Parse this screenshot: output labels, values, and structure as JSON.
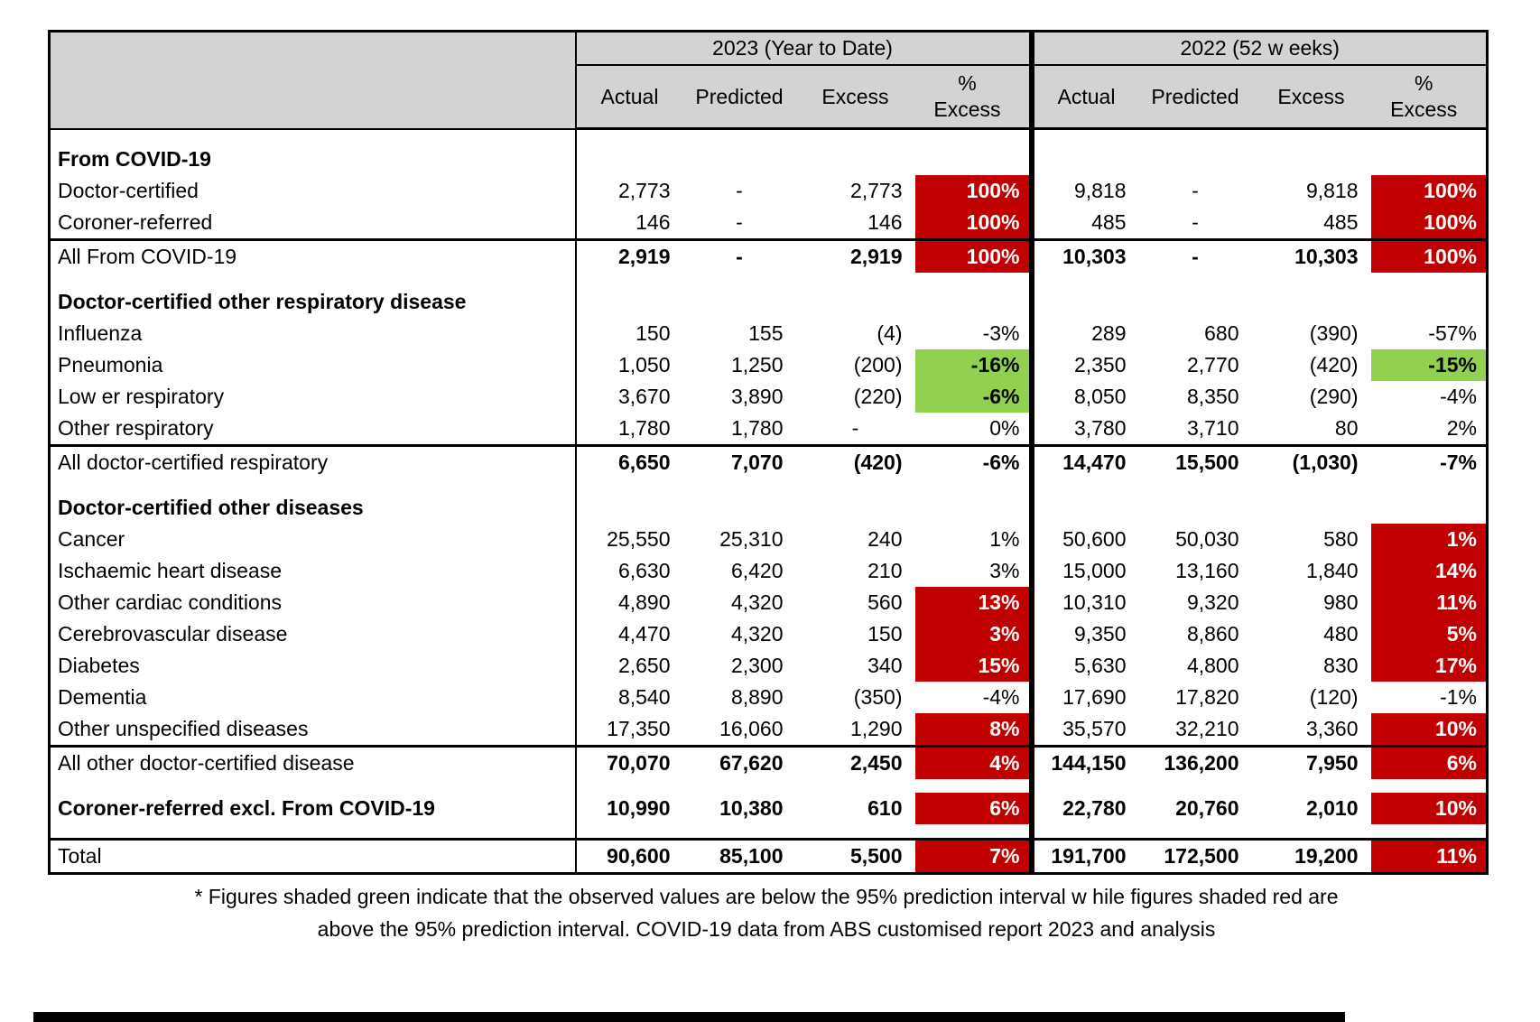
{
  "colors": {
    "red_fill": "#C00000",
    "green_fill": "#92D050",
    "header_bg": "#D3D3D3",
    "border": "#000000"
  },
  "chart_data": {
    "type": "table",
    "title": "",
    "year_groups": [
      "2023 (Year to Date)",
      "2022 (52 w eeks)"
    ],
    "sub_columns": [
      "Actual",
      "Predicted",
      "Excess"
    ],
    "pct_header": {
      "line1": "%",
      "line2": "Excess"
    },
    "legend_note": "green = below 95% prediction interval, red = above 95% prediction interval",
    "rows": [
      {
        "type": "spacer"
      },
      {
        "type": "section",
        "label": "From COVID-19"
      },
      {
        "type": "data",
        "label": "Doctor-certified",
        "y2023": {
          "actual": "2,773",
          "predicted": "-",
          "excess": "2,773",
          "pct": "100%",
          "pct_style": "red"
        },
        "y2022": {
          "actual": "9,818",
          "predicted": "-",
          "excess": "9,818",
          "pct": "100%",
          "pct_style": "red"
        }
      },
      {
        "type": "data",
        "label": "Coroner-referred",
        "y2023": {
          "actual": "146",
          "predicted": "-",
          "excess": "146",
          "pct": "100%",
          "pct_style": "red"
        },
        "y2022": {
          "actual": "485",
          "predicted": "-",
          "excess": "485",
          "pct": "100%",
          "pct_style": "red"
        }
      },
      {
        "type": "data",
        "label": "All From COVID-19",
        "top_border": true,
        "bold_values": true,
        "y2023": {
          "actual": "2,919",
          "predicted": "-",
          "excess": "2,919",
          "pct": "100%",
          "pct_style": "red"
        },
        "y2022": {
          "actual": "10,303",
          "predicted": "-",
          "excess": "10,303",
          "pct": "100%",
          "pct_style": "red"
        }
      },
      {
        "type": "spacer"
      },
      {
        "type": "section",
        "label": "Doctor-certified other respiratory disease"
      },
      {
        "type": "data",
        "label": "Influenza",
        "y2023": {
          "actual": "150",
          "predicted": "155",
          "excess": "(4)",
          "pct": "-3%",
          "pct_style": "plain"
        },
        "y2022": {
          "actual": "289",
          "predicted": "680",
          "excess": "(390)",
          "pct": "-57%",
          "pct_style": "plain"
        }
      },
      {
        "type": "data",
        "label": "Pneumonia",
        "y2023": {
          "actual": "1,050",
          "predicted": "1,250",
          "excess": "(200)",
          "pct": "-16%",
          "pct_style": "green"
        },
        "y2022": {
          "actual": "2,350",
          "predicted": "2,770",
          "excess": "(420)",
          "pct": "-15%",
          "pct_style": "green"
        }
      },
      {
        "type": "data",
        "label": "Low er respiratory",
        "y2023": {
          "actual": "3,670",
          "predicted": "3,890",
          "excess": "(220)",
          "pct": "-6%",
          "pct_style": "green"
        },
        "y2022": {
          "actual": "8,050",
          "predicted": "8,350",
          "excess": "(290)",
          "pct": "-4%",
          "pct_style": "plain"
        }
      },
      {
        "type": "data",
        "label": "Other respiratory",
        "y2023": {
          "actual": "1,780",
          "predicted": "1,780",
          "excess": "-",
          "pct": "0%",
          "pct_style": "plain"
        },
        "y2022": {
          "actual": "3,780",
          "predicted": "3,710",
          "excess": "80",
          "pct": "2%",
          "pct_style": "plain"
        }
      },
      {
        "type": "data",
        "label": "All doctor-certified respiratory",
        "top_border": true,
        "bold_values": true,
        "y2023": {
          "actual": "6,650",
          "predicted": "7,070",
          "excess": "(420)",
          "pct": "-6%",
          "pct_style": "plain"
        },
        "y2022": {
          "actual": "14,470",
          "predicted": "15,500",
          "excess": "(1,030)",
          "pct": "-7%",
          "pct_style": "plain"
        }
      },
      {
        "type": "spacer"
      },
      {
        "type": "section",
        "label": "Doctor-certified other diseases"
      },
      {
        "type": "data",
        "label": "Cancer",
        "y2023": {
          "actual": "25,550",
          "predicted": "25,310",
          "excess": "240",
          "pct": "1%",
          "pct_style": "plain"
        },
        "y2022": {
          "actual": "50,600",
          "predicted": "50,030",
          "excess": "580",
          "pct": "1%",
          "pct_style": "red"
        }
      },
      {
        "type": "data",
        "label": "Ischaemic heart disease",
        "y2023": {
          "actual": "6,630",
          "predicted": "6,420",
          "excess": "210",
          "pct": "3%",
          "pct_style": "plain"
        },
        "y2022": {
          "actual": "15,000",
          "predicted": "13,160",
          "excess": "1,840",
          "pct": "14%",
          "pct_style": "red"
        }
      },
      {
        "type": "data",
        "label": "Other cardiac conditions",
        "y2023": {
          "actual": "4,890",
          "predicted": "4,320",
          "excess": "560",
          "pct": "13%",
          "pct_style": "red"
        },
        "y2022": {
          "actual": "10,310",
          "predicted": "9,320",
          "excess": "980",
          "pct": "11%",
          "pct_style": "red"
        }
      },
      {
        "type": "data",
        "label": "Cerebrovascular disease",
        "y2023": {
          "actual": "4,470",
          "predicted": "4,320",
          "excess": "150",
          "pct": "3%",
          "pct_style": "red"
        },
        "y2022": {
          "actual": "9,350",
          "predicted": "8,860",
          "excess": "480",
          "pct": "5%",
          "pct_style": "red"
        }
      },
      {
        "type": "data",
        "label": "Diabetes",
        "y2023": {
          "actual": "2,650",
          "predicted": "2,300",
          "excess": "340",
          "pct": "15%",
          "pct_style": "red"
        },
        "y2022": {
          "actual": "5,630",
          "predicted": "4,800",
          "excess": "830",
          "pct": "17%",
          "pct_style": "red"
        }
      },
      {
        "type": "data",
        "label": "Dementia",
        "y2023": {
          "actual": "8,540",
          "predicted": "8,890",
          "excess": "(350)",
          "pct": "-4%",
          "pct_style": "plain"
        },
        "y2022": {
          "actual": "17,690",
          "predicted": "17,820",
          "excess": "(120)",
          "pct": "-1%",
          "pct_style": "plain"
        }
      },
      {
        "type": "data",
        "label": "Other unspecified diseases",
        "y2023": {
          "actual": "17,350",
          "predicted": "16,060",
          "excess": "1,290",
          "pct": "8%",
          "pct_style": "red"
        },
        "y2022": {
          "actual": "35,570",
          "predicted": "32,210",
          "excess": "3,360",
          "pct": "10%",
          "pct_style": "red"
        }
      },
      {
        "type": "data",
        "label": "All other doctor-certified disease",
        "top_border": true,
        "bold_values": true,
        "y2023": {
          "actual": "70,070",
          "predicted": "67,620",
          "excess": "2,450",
          "pct": "4%",
          "pct_style": "red"
        },
        "y2022": {
          "actual": "144,150",
          "predicted": "136,200",
          "excess": "7,950",
          "pct": "6%",
          "pct_style": "red"
        }
      },
      {
        "type": "spacer"
      },
      {
        "type": "data",
        "label": "Coroner-referred excl. From COVID-19",
        "bold_label": true,
        "bold_values": true,
        "y2023": {
          "actual": "10,990",
          "predicted": "10,380",
          "excess": "610",
          "pct": "6%",
          "pct_style": "red"
        },
        "y2022": {
          "actual": "22,780",
          "predicted": "20,760",
          "excess": "2,010",
          "pct": "10%",
          "pct_style": "red"
        }
      },
      {
        "type": "spacer"
      },
      {
        "type": "data",
        "label": "Total",
        "top_border": true,
        "bold_values": true,
        "y2023": {
          "actual": "90,600",
          "predicted": "85,100",
          "excess": "5,500",
          "pct": "7%",
          "pct_style": "red"
        },
        "y2022": {
          "actual": "191,700",
          "predicted": "172,500",
          "excess": "19,200",
          "pct": "11%",
          "pct_style": "red"
        }
      }
    ]
  },
  "footnote": {
    "line1": "* Figures shaded green indicate that the observed values are below the 95% prediction interval w hile figures shaded red are",
    "line2": "above the 95% prediction interval.  COVID-19 data from ABS customised report 2023 and analysis"
  }
}
